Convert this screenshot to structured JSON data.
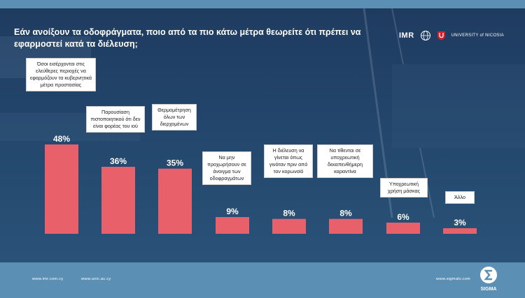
{
  "title": "Εάν ανοίξουν τα οδοφράγματα, ποιο από τα πιο κάτω μέτρα θεωρείτε ότι πρέπει να εφαρμοστεί κατά τα διέλευση;",
  "logos": {
    "imr": "IMR",
    "unic": "UNIVERSITY of NICOSIA"
  },
  "footer": {
    "link1": "www.imr.com.cy",
    "link2": "www.unic.ac.cy",
    "link3": "www.sigmatv.com",
    "brand": "SIGMA"
  },
  "colors": {
    "background": "#1f3b60",
    "bar": "#e8606a",
    "band": "#5b8fb3"
  },
  "chart_data": {
    "type": "bar",
    "categories": [
      "Όσοι εισέρχονται στις ελεύθερες περιοχές να εφαρμόζουν τα κυβερνητικά μέτρα προστασίας",
      "Παρουσίαση πιστοποιητικού ότι δεν είναι φορέας του ιού",
      "Θερμομέτρηση όλων των διερχομένων",
      "Να μην προχωρήσουν σε άνοιγμα των οδοφραγμάτων",
      "Η διέλευση να γίνεται όπως γινόταν πριν από τον κορωνοϊό",
      "Να τίθενται σε υποχρεωτική δεκαπενθήμερη καραντίνα",
      "Υποχρεωτική χρήση μάσκας",
      "Άλλο"
    ],
    "values": [
      48,
      36,
      35,
      9,
      8,
      8,
      6,
      3
    ],
    "value_labels": [
      "48%",
      "36%",
      "35%",
      "9%",
      "8%",
      "8%",
      "6%",
      "3%"
    ],
    "ylim": [
      0,
      48
    ],
    "grid": false,
    "legend": "none"
  }
}
